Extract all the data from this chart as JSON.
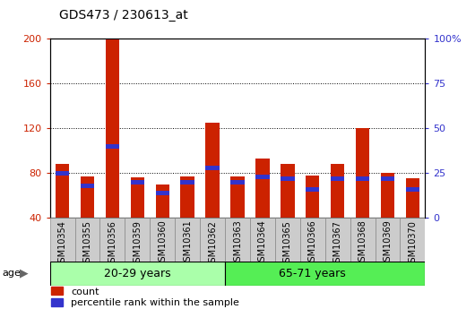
{
  "title": "GDS473 / 230613_at",
  "samples": [
    "GSM10354",
    "GSM10355",
    "GSM10356",
    "GSM10359",
    "GSM10360",
    "GSM10361",
    "GSM10362",
    "GSM10363",
    "GSM10364",
    "GSM10365",
    "GSM10366",
    "GSM10367",
    "GSM10368",
    "GSM10369",
    "GSM10370"
  ],
  "count_values": [
    88,
    77,
    200,
    76,
    70,
    77,
    125,
    77,
    93,
    88,
    78,
    88,
    120,
    80,
    75
  ],
  "percentile_values": [
    25,
    18,
    40,
    20,
    14,
    20,
    28,
    20,
    23,
    22,
    16,
    22,
    22,
    22,
    16
  ],
  "group1_label": "20-29 years",
  "group2_label": "65-71 years",
  "group1_count": 7,
  "group2_count": 8,
  "age_label": "age",
  "ylim_left": [
    40,
    200
  ],
  "ylim_right": [
    0,
    100
  ],
  "yticks_left": [
    40,
    80,
    120,
    160,
    200
  ],
  "yticks_right": [
    0,
    25,
    50,
    75,
    100
  ],
  "ytick_labels_right": [
    "0",
    "25",
    "50",
    "75",
    "100%"
  ],
  "bar_color": "#cc2200",
  "blue_color": "#3333cc",
  "group1_bg": "#aaffaa",
  "group2_bg": "#55ee55",
  "tick_bg": "#cccccc",
  "legend_count_label": "count",
  "legend_pct_label": "percentile rank within the sample",
  "title_fontsize": 10,
  "tick_fontsize": 7,
  "bar_width": 0.55,
  "blue_bar_height": 4
}
